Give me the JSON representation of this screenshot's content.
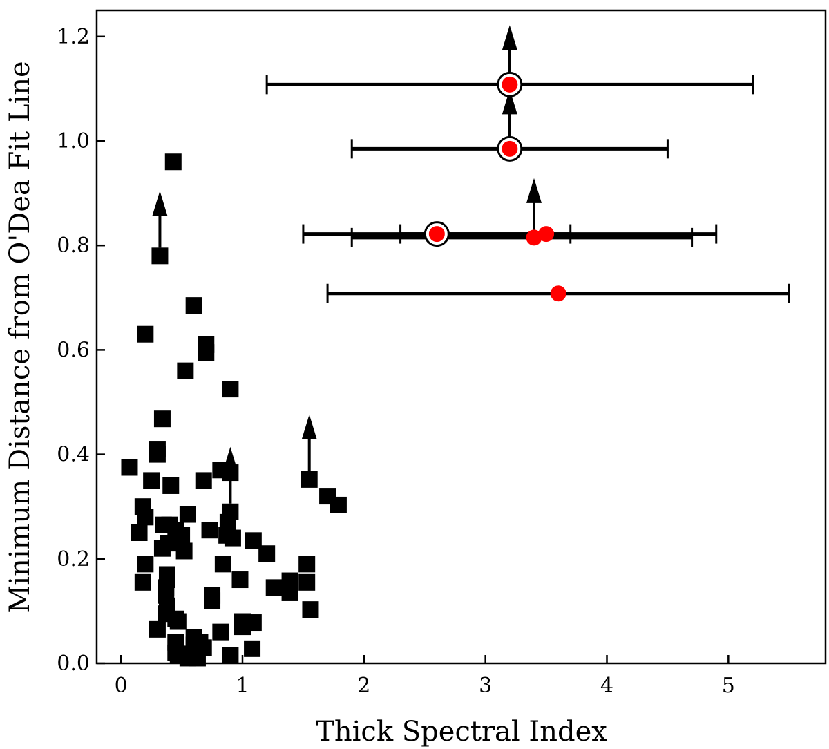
{
  "chart_data": {
    "type": "scatter",
    "title": "",
    "xlabel": "Thick Spectral Index",
    "ylabel": "Minimum Distance from O'Dea Fit Line",
    "xlim": [
      -0.2,
      5.8
    ],
    "ylim": [
      0.0,
      1.25
    ],
    "xticks": [
      0,
      1,
      2,
      3,
      4,
      5
    ],
    "yticks": [
      0.0,
      0.2,
      0.4,
      0.6,
      0.8,
      1.0,
      1.2
    ],
    "xtick_labels": [
      "0",
      "1",
      "2",
      "3",
      "4",
      "5"
    ],
    "ytick_labels": [
      "0.0",
      "0.2",
      "0.4",
      "0.6",
      "0.8",
      "1.0",
      "1.2"
    ],
    "grid": false,
    "legend": "none",
    "colors": {
      "squares": "#000000",
      "points": "#ff0000",
      "lines": "#000000"
    },
    "series": [
      {
        "marker": "square",
        "points": [
          [
            0.43,
            0.96
          ],
          [
            0.32,
            0.78
          ],
          [
            0.6,
            0.685
          ],
          [
            0.2,
            0.63
          ],
          [
            0.7,
            0.61
          ],
          [
            0.7,
            0.595
          ],
          [
            0.53,
            0.56
          ],
          [
            0.9,
            0.525
          ],
          [
            0.34,
            0.468
          ],
          [
            0.3,
            0.41
          ],
          [
            0.3,
            0.4
          ],
          [
            0.07,
            0.375
          ],
          [
            0.82,
            0.37
          ],
          [
            0.9,
            0.365
          ],
          [
            0.68,
            0.35
          ],
          [
            0.25,
            0.35
          ],
          [
            0.41,
            0.34
          ],
          [
            1.55,
            0.352
          ],
          [
            1.7,
            0.32
          ],
          [
            1.79,
            0.303
          ],
          [
            0.18,
            0.3
          ],
          [
            0.2,
            0.28
          ],
          [
            0.9,
            0.29
          ],
          [
            0.55,
            0.285
          ],
          [
            0.88,
            0.27
          ],
          [
            0.35,
            0.265
          ],
          [
            0.4,
            0.265
          ],
          [
            0.45,
            0.255
          ],
          [
            0.15,
            0.25
          ],
          [
            0.73,
            0.255
          ],
          [
            0.87,
            0.245
          ],
          [
            0.92,
            0.24
          ],
          [
            0.5,
            0.245
          ],
          [
            0.39,
            0.23
          ],
          [
            1.09,
            0.235
          ],
          [
            0.34,
            0.22
          ],
          [
            0.52,
            0.215
          ],
          [
            1.2,
            0.21
          ],
          [
            0.2,
            0.19
          ],
          [
            0.84,
            0.19
          ],
          [
            1.53,
            0.19
          ],
          [
            0.38,
            0.17
          ],
          [
            0.38,
            0.16
          ],
          [
            0.98,
            0.16
          ],
          [
            0.18,
            0.155
          ],
          [
            1.39,
            0.158
          ],
          [
            1.53,
            0.155
          ],
          [
            1.26,
            0.145
          ],
          [
            0.37,
            0.145
          ],
          [
            0.37,
            0.13
          ],
          [
            0.75,
            0.13
          ],
          [
            0.75,
            0.12
          ],
          [
            1.39,
            0.135
          ],
          [
            0.38,
            0.11
          ],
          [
            1.56,
            0.103
          ],
          [
            0.37,
            0.095
          ],
          [
            0.45,
            0.085
          ],
          [
            0.47,
            0.08
          ],
          [
            1.0,
            0.08
          ],
          [
            1.09,
            0.078
          ],
          [
            1.0,
            0.07
          ],
          [
            0.3,
            0.065
          ],
          [
            0.82,
            0.06
          ],
          [
            0.6,
            0.05
          ],
          [
            0.45,
            0.04
          ],
          [
            0.65,
            0.04
          ],
          [
            0.6,
            0.035
          ],
          [
            0.68,
            0.03
          ],
          [
            1.08,
            0.028
          ],
          [
            0.45,
            0.02
          ],
          [
            0.5,
            0.018
          ],
          [
            0.47,
            0.015
          ],
          [
            0.9,
            0.015
          ],
          [
            0.55,
            0.01
          ],
          [
            0.63,
            0.01
          ]
        ],
        "lower_limit_arrows": [
          [
            0.32,
            0.78
          ],
          [
            0.9,
            0.29
          ],
          [
            1.55,
            0.352
          ]
        ]
      },
      {
        "marker": "circle",
        "points": [
          {
            "x": 3.2,
            "y": 1.108,
            "xerr": [
              1.2,
              5.2
            ],
            "ring": true,
            "arrow_up": true
          },
          {
            "x": 3.2,
            "y": 0.985,
            "xerr": [
              1.9,
              4.5
            ],
            "ring": true,
            "arrow_up": true
          },
          {
            "x": 2.6,
            "y": 0.822,
            "xerr": [
              1.5,
              4.9
            ],
            "ring": true,
            "arrow_up": false
          },
          {
            "x": 3.4,
            "y": 0.815,
            "xerr": [
              1.9,
              4.7
            ],
            "ring": false,
            "arrow_up": true
          },
          {
            "x": 3.5,
            "y": 0.822,
            "xerr": [
              2.3,
              3.7
            ],
            "ring": false,
            "arrow_up": false
          },
          {
            "x": 3.6,
            "y": 0.708,
            "xerr": [
              1.7,
              5.5
            ],
            "ring": false,
            "arrow_up": false
          }
        ]
      }
    ]
  }
}
